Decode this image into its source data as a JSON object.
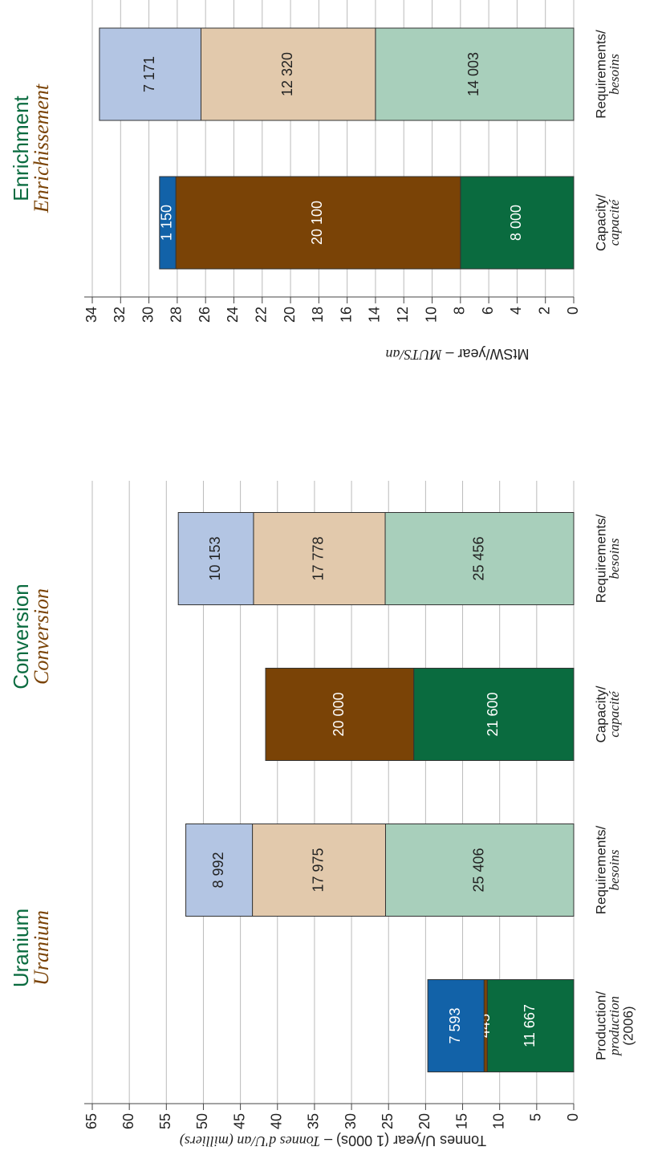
{
  "chart_data": [
    {
      "type": "bar",
      "stacked": true,
      "groups": [
        {
          "title": "Uranium",
          "subtitle": "Uranium"
        },
        {
          "title": "Conversion",
          "subtitle": "Conversion"
        }
      ],
      "categories": [
        [
          "Production/",
          "production",
          "(2006)"
        ],
        [
          "Requirements/",
          "besoins"
        ],
        [
          "Capacity/",
          "capacité"
        ],
        [
          "Requirements/",
          "besoins"
        ]
      ],
      "series": [
        {
          "colors": [
            "#0a6b3f",
            "#a8cfbb",
            "#0a6b3f",
            "#a8cfbb"
          ],
          "values": [
            11.667,
            25.406,
            21.6,
            25.456
          ],
          "value_labels": [
            "11 667",
            "25 406",
            "21 600",
            "25 456"
          ]
        },
        {
          "colors": [
            "#7a4306",
            "#e2c9ac",
            "#7a4306",
            "#e2c9ac"
          ],
          "values": [
            0.445,
            17.975,
            20.0,
            17.778
          ],
          "value_labels": [
            "445",
            "17 975",
            "20 000",
            "17 778"
          ]
        },
        {
          "colors": [
            "#1262a8",
            "#b3c5e3",
            null,
            "#b3c5e3"
          ],
          "values": [
            7.593,
            8.992,
            null,
            10.153
          ],
          "value_labels": [
            "7 593",
            "8 992",
            null,
            "10 153"
          ]
        }
      ],
      "ylabel": [
        "Tonnes U/year (1 000s) – ",
        "Tonnes d'U/an (milliers)"
      ],
      "ylim": [
        0,
        65
      ],
      "yticks": [
        0,
        5,
        10,
        15,
        20,
        25,
        30,
        35,
        40,
        45,
        50,
        55,
        60,
        65
      ],
      "grid": true
    },
    {
      "type": "bar",
      "stacked": true,
      "groups": [
        {
          "title": "Enrichment",
          "subtitle": "Enrichissement"
        }
      ],
      "categories": [
        [
          "Capacity/",
          "capacité"
        ],
        [
          "Requirements/",
          "besoins"
        ]
      ],
      "series": [
        {
          "colors": [
            "#0a6b3f",
            "#a8cfbb"
          ],
          "values": [
            8.0,
            14.003
          ],
          "value_labels": [
            "8 000",
            "14 003"
          ]
        },
        {
          "colors": [
            "#7a4306",
            "#e2c9ac"
          ],
          "values": [
            20.1,
            12.32
          ],
          "value_labels": [
            "20 100",
            "12 320"
          ]
        },
        {
          "colors": [
            "#1262a8",
            "#b3c5e3"
          ],
          "values": [
            1.15,
            7.171
          ],
          "value_labels": [
            "1 150",
            "7 171"
          ]
        }
      ],
      "ylabel": [
        "MtSW/year  –  ",
        "MUTS/an"
      ],
      "ylim": [
        0,
        34
      ],
      "yticks": [
        0,
        2,
        4,
        6,
        8,
        10,
        12,
        14,
        16,
        18,
        20,
        22,
        24,
        26,
        28,
        30,
        32,
        34
      ],
      "grid": true
    }
  ]
}
